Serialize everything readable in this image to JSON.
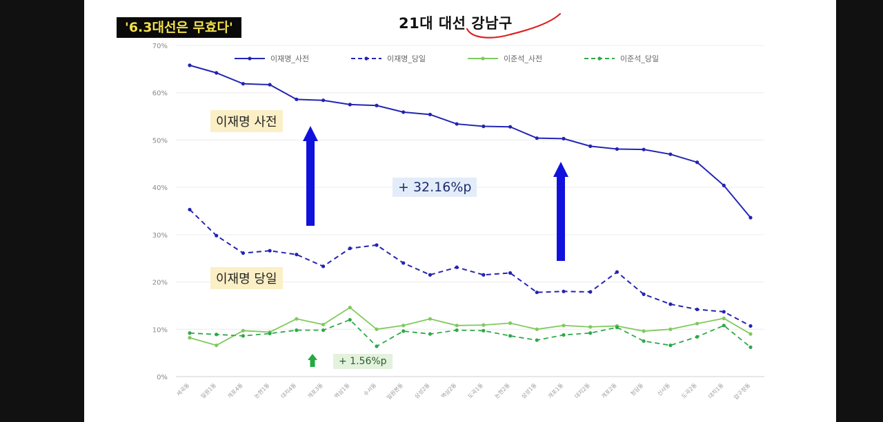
{
  "badge_text": "'6.3대선은 무효다'",
  "header_title": "21대 대선  강남구",
  "annotations": {
    "label_early": "이재명 사전",
    "label_day": "이재명 당일",
    "diff_lee": "+ 32.16%p",
    "diff_lee_color": "#e3edf9",
    "diff_lee_text_color": "#1d2a6b",
    "diff_lee_arrow": "arrow-up-icon",
    "diff_lee_arrow_color": "#1111dd",
    "diff_lee_jun": "+ 1.56%p",
    "diff_lee_jun_color": "#e3f2dd",
    "diff_lee_jun_arrow": "arrow-up-icon",
    "diff_lee_jun_arrow_color": "#22aa44",
    "underline_color": "#dd2222"
  },
  "chart_data": {
    "type": "line",
    "categories": [
      "세곡동",
      "일원1동",
      "개포4동",
      "논현1동",
      "대치4동",
      "개포3동",
      "역삼1동",
      "수서동",
      "일원본동",
      "삼성2동",
      "역삼2동",
      "도곡1동",
      "논현2동",
      "삼성1동",
      "개포1동",
      "대치2동",
      "개포2동",
      "청담동",
      "신사동",
      "도곡2동",
      "대치1동",
      "압구정동"
    ],
    "ylim": [
      0,
      70
    ],
    "yticks": [
      0,
      10,
      20,
      30,
      40,
      50,
      60,
      70
    ],
    "ytick_labels": [
      "0%",
      "10%",
      "20%",
      "30%",
      "40%",
      "50%",
      "60%",
      "70%"
    ],
    "grid": true,
    "legend_position": "top",
    "series": [
      {
        "name": "이재명_사전",
        "color": "#2323b4",
        "dash": false,
        "values": [
          65.8,
          64.2,
          61.9,
          61.7,
          58.6,
          58.4,
          57.5,
          57.3,
          55.9,
          55.4,
          53.4,
          52.9,
          52.8,
          50.4,
          50.3,
          48.7,
          48.1,
          48.0,
          47.0,
          45.3,
          40.4,
          33.6
        ]
      },
      {
        "name": "이재명_당일",
        "color": "#2323b4",
        "dash": true,
        "values": [
          35.3,
          29.8,
          26.1,
          26.6,
          25.8,
          23.3,
          27.1,
          27.8,
          24.0,
          21.5,
          23.1,
          21.5,
          21.9,
          17.8,
          18.0,
          17.9,
          22.1,
          17.4,
          15.3,
          14.2,
          13.7,
          10.7
        ]
      },
      {
        "name": "이준석_사전",
        "color": "#7fc95d",
        "dash": false,
        "values": [
          8.2,
          6.6,
          9.7,
          9.4,
          12.2,
          11.0,
          14.6,
          10.0,
          10.8,
          12.2,
          10.8,
          10.9,
          11.3,
          10.0,
          10.8,
          10.5,
          10.7,
          9.6,
          10.0,
          11.2,
          12.3,
          9.0
        ]
      },
      {
        "name": "이준석_당일",
        "color": "#2ea84a",
        "dash": true,
        "values": [
          9.2,
          8.9,
          8.6,
          9.1,
          9.8,
          9.8,
          12.0,
          6.4,
          9.6,
          9.0,
          9.8,
          9.7,
          8.6,
          7.7,
          8.8,
          9.2,
          10.4,
          7.5,
          6.6,
          8.4,
          10.8,
          6.2
        ]
      }
    ]
  }
}
